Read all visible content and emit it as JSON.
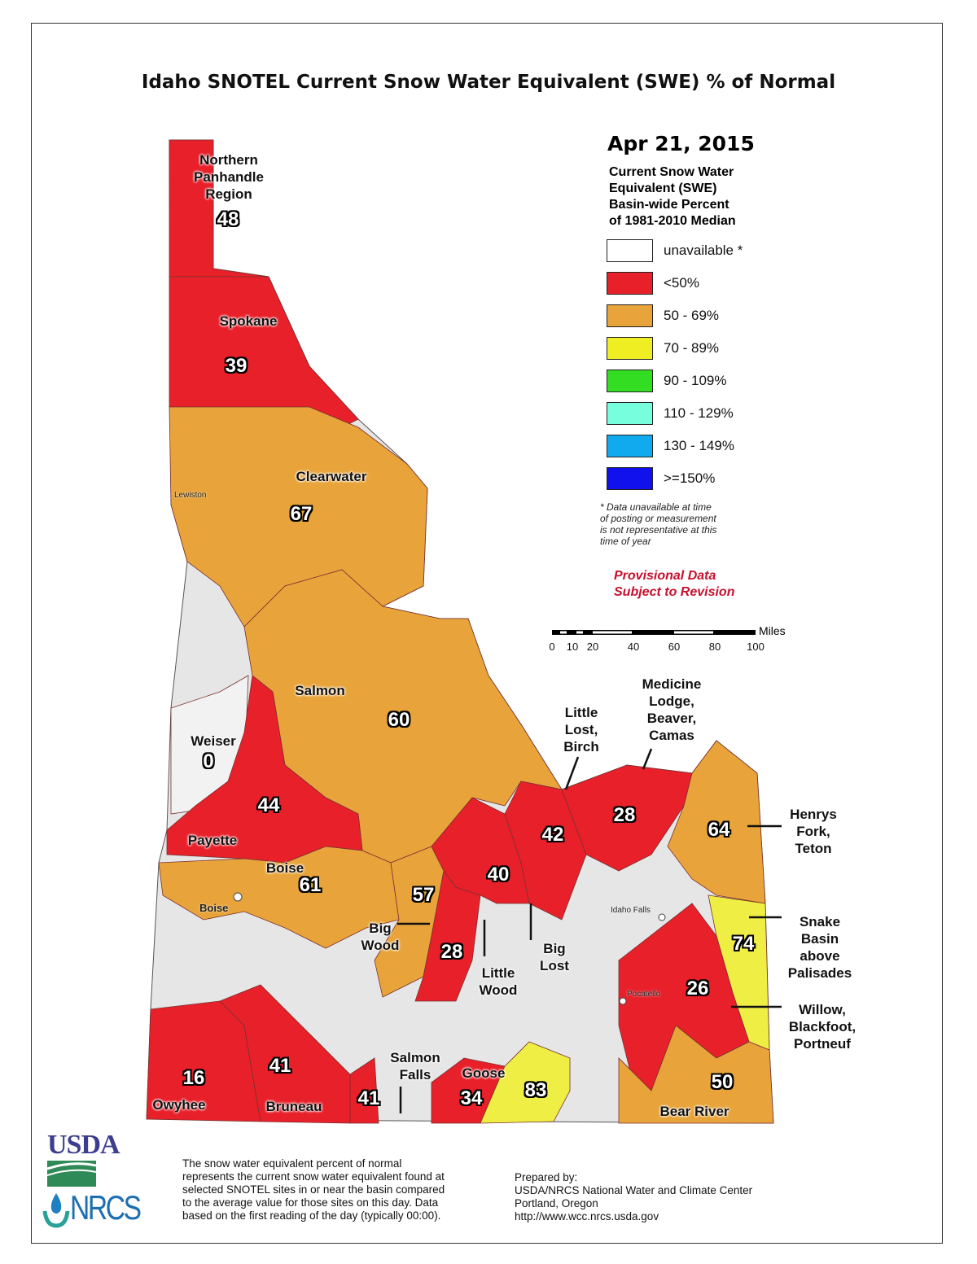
{
  "title": "Idaho SNOTEL Current Snow Water Equivalent (SWE) % of Normal",
  "legend": {
    "date": "Apr 21, 2015",
    "heading": "Current Snow Water\nEquivalent (SWE)\nBasin-wide Percent\nof 1981-2010 Median",
    "items": [
      {
        "label": "unavailable *",
        "color": "#ffffff"
      },
      {
        "label": "<50%",
        "color": "#e8202a"
      },
      {
        "label": "50 - 69%",
        "color": "#e8a43a"
      },
      {
        "label": "70 - 89%",
        "color": "#eeee22"
      },
      {
        "label": "90 - 109%",
        "color": "#33dd22"
      },
      {
        "label": "110 - 129%",
        "color": "#77ffdd"
      },
      {
        "label": "130 - 149%",
        "color": "#11aaee"
      },
      {
        "label": ">=150%",
        "color": "#1111ee"
      }
    ],
    "note": "*  Data unavailable at time\n    of posting or measurement\n    is not representative at this\n    time of year",
    "provisional": "Provisional Data\nSubject to Revision"
  },
  "scale": {
    "unit": "Miles",
    "ticks": [
      "0",
      "10",
      "20",
      "40",
      "60",
      "80",
      "100"
    ]
  },
  "basins": [
    {
      "name": "Northern\nPanhandle\nRegion",
      "value": "48"
    },
    {
      "name": "Spokane",
      "value": "39"
    },
    {
      "name": "Clearwater",
      "value": "67"
    },
    {
      "name": "Salmon",
      "value": "60"
    },
    {
      "name": "Weiser",
      "value": "0"
    },
    {
      "name": "Payette",
      "value": "44"
    },
    {
      "name": "Boise",
      "value": "61"
    },
    {
      "name": "Big\nWood",
      "value": "57"
    },
    {
      "name": "Little\nWood",
      "value": "28"
    },
    {
      "name": "Big\nLost",
      "value": "40"
    },
    {
      "name": "Little\nLost,\nBirch",
      "value": "42"
    },
    {
      "name": "Medicine\nLodge,\nBeaver,\nCamas",
      "value": "28"
    },
    {
      "name": "Henrys\nFork,\nTeton",
      "value": "64"
    },
    {
      "name": "Snake\nBasin\nabove\nPalisades",
      "value": "74"
    },
    {
      "name": "Willow,\nBlackfoot,\nPortneuf",
      "value": "26"
    },
    {
      "name": "Bear River",
      "value": "50"
    },
    {
      "name": "Owyhee",
      "value": "16"
    },
    {
      "name": "Bruneau",
      "value": "41"
    },
    {
      "name": "Salmon\nFalls",
      "value": "41"
    },
    {
      "name": "Goose",
      "value": "34"
    },
    {
      "name": "",
      "value": "83"
    }
  ],
  "cities": [
    "Lewiston",
    "Boise",
    "Idaho Falls",
    "Pocatello"
  ],
  "logos": {
    "usda": "USDA",
    "nrcs": "NRCS"
  },
  "footer": {
    "description": "The snow water equivalent percent of normal\nrepresents the current snow water equivalent found at\nselected SNOTEL sites in or near the basin compared\nto the average value for those sites on this day. Data\nbased on the first reading of the day (typically 00:00).",
    "prepared": "Prepared by:\nUSDA/NRCS National Water and Climate Center\nPortland, Oregon\nhttp://www.wcc.nrcs.usda.gov"
  }
}
